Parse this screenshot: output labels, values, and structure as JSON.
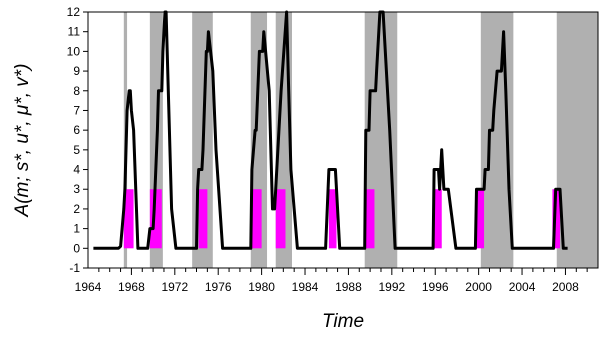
{
  "chart_data": {
    "type": "line",
    "xlabel": "Time",
    "ylabel": "A(m; s*, u*, μ*, v*)",
    "xlim": [
      1964,
      2011
    ],
    "ylim": [
      -1,
      12
    ],
    "x_ticks": [
      1964,
      1968,
      1972,
      1976,
      1980,
      1984,
      1988,
      1992,
      1996,
      2000,
      2004,
      2008
    ],
    "y_ticks": [
      -1,
      0,
      1,
      2,
      3,
      4,
      5,
      6,
      7,
      8,
      9,
      10,
      11,
      12
    ],
    "grid": false,
    "legend": "none",
    "colors": {
      "line": "#000000",
      "shade": "#b0b0b0",
      "highlight": "#ff00ff"
    },
    "gray_bands": [
      [
        1967.3,
        1967.6
      ],
      [
        1969.7,
        1970.9
      ],
      [
        1973.6,
        1975.5
      ],
      [
        1979.0,
        1980.5
      ],
      [
        1981.3,
        1982.8
      ],
      [
        1989.5,
        1992.5
      ],
      [
        2000.2,
        2003.2
      ],
      [
        2007.2,
        2011.0
      ]
    ],
    "magenta_bars": [
      {
        "x": [
          1967.3,
          1968.2
        ],
        "y": 3
      },
      {
        "x": [
          1969.7,
          1970.8
        ],
        "y": 3
      },
      {
        "x": [
          1974.2,
          1975.0
        ],
        "y": 3
      },
      {
        "x": [
          1979.0,
          1980.0
        ],
        "y": 3
      },
      {
        "x": [
          1981.3,
          1982.2
        ],
        "y": 3
      },
      {
        "x": [
          1986.2,
          1986.9
        ],
        "y": 3
      },
      {
        "x": [
          1989.5,
          1990.4
        ],
        "y": 3
      },
      {
        "x": [
          1995.9,
          1996.6
        ],
        "y": 3
      },
      {
        "x": [
          1999.8,
          2000.5
        ],
        "y": 3
      },
      {
        "x": [
          2006.8,
          2007.5
        ],
        "y": 3
      }
    ],
    "series": [
      {
        "x": [
          1964.5,
          1966.8,
          1967.0,
          1967.3,
          1967.4,
          1967.6,
          1967.8,
          1967.9,
          1968.0,
          1968.2,
          1968.6,
          1969.5,
          1969.7,
          1970.0,
          1970.1,
          1970.4,
          1970.5,
          1970.8,
          1970.9,
          1971.1,
          1971.2,
          1971.4,
          1971.7,
          1972.1,
          1972.5,
          1974.0,
          1974.1,
          1974.2,
          1974.5,
          1974.6,
          1974.9,
          1975.0,
          1975.1,
          1975.5,
          1975.8,
          1976.4,
          1979.0,
          1979.1,
          1979.4,
          1979.5,
          1979.8,
          1980.0,
          1980.1,
          1980.2,
          1980.7,
          1981.0,
          1981.2,
          1981.3,
          1981.8,
          1982.3,
          1982.5,
          1982.7,
          1983.3,
          1985.5,
          1985.9,
          1986.2,
          1986.8,
          1986.9,
          1987.2,
          1988.6,
          1989.5,
          1989.6,
          1989.9,
          1990.0,
          1990.5,
          1990.6,
          1990.9,
          1991.2,
          1991.5,
          1991.8,
          1992.3,
          1995.8,
          1995.9,
          1996.3,
          1996.4,
          1996.6,
          1996.7,
          1996.8,
          1997.0,
          1997.2,
          1997.9,
          1999.7,
          1999.8,
          2000.5,
          2000.6,
          2000.9,
          2001.0,
          2001.3,
          2001.4,
          2001.7,
          2002.1,
          2002.3,
          2002.5,
          2002.8,
          2003.1,
          2003.3,
          2006.9,
          2007.1,
          2007.5,
          2007.8,
          2008.2
        ],
        "values": [
          0,
          0,
          0.1,
          2,
          3,
          7,
          8,
          8,
          7,
          6,
          0,
          0,
          1,
          1,
          2,
          6,
          8,
          8,
          10,
          12,
          12,
          8,
          2,
          0,
          0,
          0,
          3,
          4,
          4,
          5,
          10,
          10,
          11,
          9,
          5,
          0,
          0,
          4,
          6,
          6,
          10,
          10,
          10,
          11,
          8,
          2,
          2,
          3,
          8,
          12,
          8,
          4,
          0,
          0,
          0,
          4,
          4,
          3,
          0,
          0,
          0,
          6,
          6,
          8,
          8,
          9,
          12,
          12,
          9,
          6,
          0,
          0,
          4,
          4,
          3,
          5,
          4,
          3,
          3,
          3,
          0,
          0,
          3,
          3,
          4,
          4,
          6,
          6,
          7,
          9,
          9,
          11,
          8,
          3,
          0,
          0,
          0,
          3,
          3,
          0,
          0
        ]
      }
    ]
  }
}
